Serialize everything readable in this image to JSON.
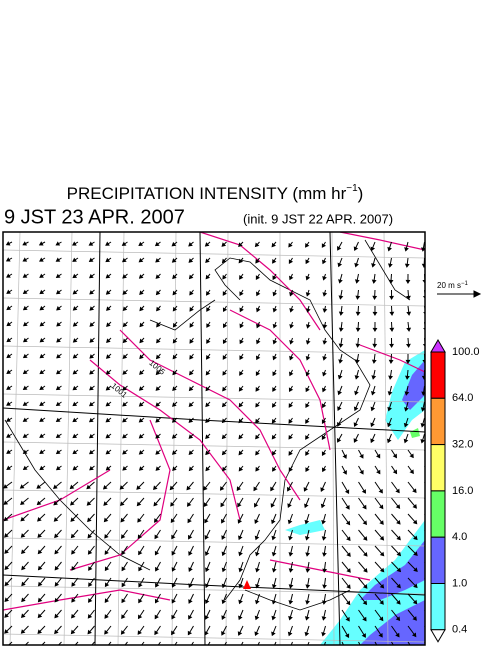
{
  "header": {
    "title": "PRECIPITATION INTENSITY (mm hr",
    "title_exponent": "−1",
    "title_end": ")",
    "valid_time": "9 JST 23 APR. 2007",
    "init_time": "(init. 9 JST 22 APR. 2007)"
  },
  "map": {
    "contour_labels": [
      "1005",
      "1001"
    ]
  },
  "scale": {
    "label": "20 m s",
    "exponent": "−1"
  },
  "colorbar": {
    "labels": [
      "100.0",
      "64.0",
      "32.0",
      "16.0",
      "4.0",
      "1.0",
      "0.4"
    ],
    "colors": [
      "#cc33ff",
      "#ff0000",
      "#ff9933",
      "#ffff66",
      "#66ff66",
      "#6666ff",
      "#66ffff",
      "#ffffff"
    ]
  }
}
